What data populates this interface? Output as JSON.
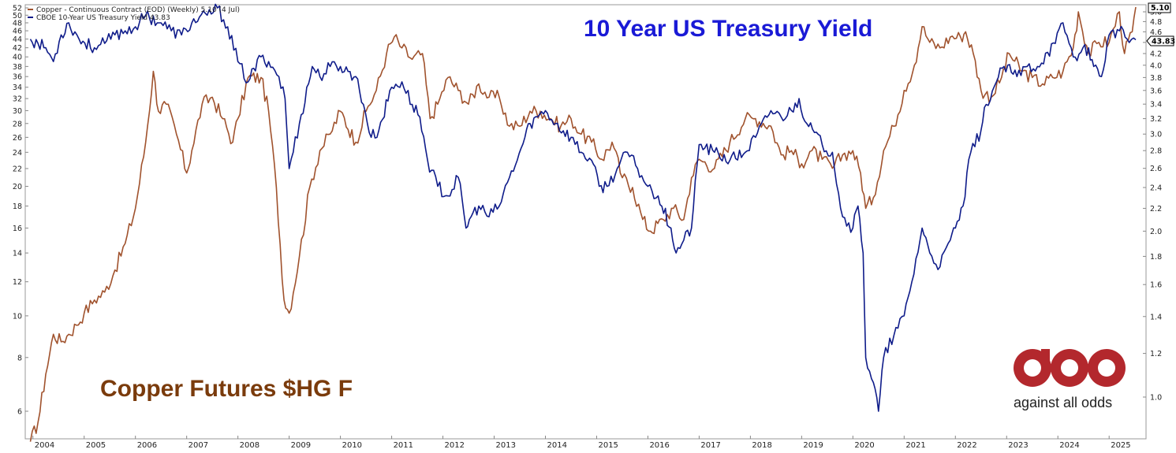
{
  "chart_data": {
    "type": "line",
    "title": "10 Year US Treasury Yield",
    "annotation": "Copper Futures $HG F",
    "legend": [
      {
        "label": "Copper - Continuous Contract (EOD) (Weekly) 5.10 (4 Jul)",
        "color": "#a0522d"
      },
      {
        "label": "CBOE 10-Year US Treasury Yield 43.83",
        "color": "#0f1c8a"
      }
    ],
    "x_ticks": [
      "2004",
      "2005",
      "2006",
      "2007",
      "2008",
      "2009",
      "2010",
      "2011",
      "2012",
      "2013",
      "2014",
      "2015",
      "2016",
      "2017",
      "2018",
      "2019",
      "2020",
      "2021",
      "2022",
      "2023",
      "2024",
      "2025"
    ],
    "left_axis": {
      "scale": "log",
      "ticks": [
        6,
        8,
        10,
        12,
        14,
        16,
        18,
        20,
        22,
        24,
        26,
        28,
        30,
        32,
        34,
        36,
        38,
        40,
        42,
        44,
        46,
        48,
        50,
        52
      ]
    },
    "right_axis": {
      "scale": "log",
      "ticks": [
        "1.0",
        "1.2",
        "1.4",
        "1.6",
        "1.8",
        "2.0",
        "2.2",
        "2.4",
        "2.6",
        "2.8",
        "3.0",
        "3.2",
        "3.4",
        "3.6",
        "3.8",
        "4.0",
        "4.2",
        "4.4",
        "4.6",
        "4.8",
        "5.0"
      ]
    },
    "series": [
      {
        "name": "Copper - Continuous Contract (EOD) (Weekly) 5.10 (4 Jul)",
        "axis": "right",
        "color": "#a0522d",
        "x": [
          2003.95,
          2004.1,
          2004.25,
          2004.4,
          2004.55,
          2004.7,
          2004.85,
          2005.0,
          2005.2,
          2005.4,
          2005.6,
          2005.8,
          2006.0,
          2006.2,
          2006.35,
          2006.45,
          2006.6,
          2006.8,
          2007.0,
          2007.1,
          2007.3,
          2007.5,
          2007.7,
          2007.9,
          2008.0,
          2008.2,
          2008.45,
          2008.6,
          2008.75,
          2008.9,
          2009.0,
          2009.2,
          2009.4,
          2009.6,
          2009.8,
          2010.0,
          2010.3,
          2010.5,
          2010.7,
          2010.9,
          2011.05,
          2011.2,
          2011.4,
          2011.6,
          2011.75,
          2011.9,
          2012.1,
          2012.3,
          2012.5,
          2012.7,
          2012.9,
          2013.1,
          2013.3,
          2013.5,
          2013.7,
          2013.9,
          2014.1,
          2014.3,
          2014.5,
          2014.7,
          2014.9,
          2015.1,
          2015.3,
          2015.5,
          2015.7,
          2015.9,
          2016.05,
          2016.3,
          2016.5,
          2016.7,
          2016.85,
          2017.0,
          2017.3,
          2017.6,
          2017.9,
          2018.1,
          2018.4,
          2018.6,
          2018.8,
          2019.0,
          2019.2,
          2019.4,
          2019.6,
          2019.8,
          2020.0,
          2020.15,
          2020.25,
          2020.4,
          2020.6,
          2020.8,
          2021.0,
          2021.2,
          2021.35,
          2021.5,
          2021.7,
          2021.9,
          2022.1,
          2022.2,
          2022.35,
          2022.5,
          2022.7,
          2022.9,
          2023.05,
          2023.3,
          2023.5,
          2023.7,
          2023.9,
          2024.1,
          2024.3,
          2024.4,
          2024.6,
          2024.8,
          2025.0,
          2025.2,
          2025.3,
          2025.45,
          2025.52
        ],
        "values": [
          0.83,
          0.9,
          1.1,
          1.3,
          1.26,
          1.3,
          1.35,
          1.42,
          1.5,
          1.55,
          1.7,
          1.9,
          2.2,
          2.9,
          3.9,
          3.3,
          3.4,
          3.0,
          2.55,
          2.8,
          3.4,
          3.5,
          3.2,
          2.9,
          3.2,
          3.8,
          3.8,
          3.3,
          2.4,
          1.5,
          1.42,
          1.8,
          2.4,
          2.8,
          3.0,
          3.3,
          2.9,
          3.3,
          3.6,
          4.2,
          4.5,
          4.3,
          4.1,
          4.2,
          3.2,
          3.4,
          3.8,
          3.6,
          3.4,
          3.7,
          3.5,
          3.5,
          3.1,
          3.1,
          3.3,
          3.3,
          3.2,
          3.1,
          3.2,
          3.0,
          2.9,
          2.7,
          2.9,
          2.5,
          2.4,
          2.1,
          2.0,
          2.1,
          2.2,
          2.1,
          2.5,
          2.7,
          2.6,
          2.9,
          3.2,
          3.2,
          3.1,
          2.75,
          2.8,
          2.65,
          2.8,
          2.7,
          2.6,
          2.75,
          2.8,
          2.55,
          2.2,
          2.3,
          2.8,
          3.1,
          3.6,
          4.0,
          4.7,
          4.4,
          4.3,
          4.5,
          4.5,
          4.6,
          4.2,
          3.6,
          3.5,
          3.8,
          4.2,
          3.9,
          3.8,
          3.7,
          3.8,
          3.9,
          4.3,
          5.0,
          4.2,
          4.4,
          4.4,
          5.0,
          4.2,
          4.6,
          5.1
        ]
      },
      {
        "name": "CBOE 10-Year US Treasury Yield 43.83",
        "axis": "left",
        "color": "#0f1c8a",
        "x": [
          2003.95,
          2004.1,
          2004.25,
          2004.4,
          2004.55,
          2004.7,
          2004.9,
          2005.2,
          2005.4,
          2005.6,
          2005.8,
          2006.0,
          2006.2,
          2006.5,
          2006.7,
          2006.9,
          2007.1,
          2007.4,
          2007.6,
          2007.8,
          2008.0,
          2008.2,
          2008.45,
          2008.6,
          2008.8,
          2008.92,
          2009.0,
          2009.2,
          2009.45,
          2009.6,
          2009.8,
          2010.0,
          2010.3,
          2010.45,
          2010.6,
          2010.75,
          2011.0,
          2011.2,
          2011.4,
          2011.55,
          2011.7,
          2011.9,
          2012.1,
          2012.3,
          2012.45,
          2012.55,
          2012.7,
          2012.9,
          2013.1,
          2013.3,
          2013.45,
          2013.6,
          2013.7,
          2013.85,
          2014.0,
          2014.2,
          2014.5,
          2014.7,
          2014.9,
          2015.05,
          2015.2,
          2015.4,
          2015.6,
          2015.8,
          2016.0,
          2016.2,
          2016.45,
          2016.55,
          2016.7,
          2016.85,
          2017.0,
          2017.3,
          2017.6,
          2017.9,
          2018.1,
          2018.4,
          2018.6,
          2018.8,
          2018.95,
          2019.1,
          2019.4,
          2019.6,
          2019.8,
          2020.0,
          2020.1,
          2020.2,
          2020.25,
          2020.4,
          2020.5,
          2020.6,
          2020.8,
          2021.0,
          2021.15,
          2021.35,
          2021.5,
          2021.7,
          2021.9,
          2022.0,
          2022.15,
          2022.3,
          2022.5,
          2022.6,
          2022.8,
          2022.95,
          2023.2,
          2023.4,
          2023.6,
          2023.8,
          2023.95,
          2024.1,
          2024.3,
          2024.45,
          2024.6,
          2024.7,
          2024.85,
          2025.0,
          2025.2,
          2025.35,
          2025.52
        ],
        "values": [
          44,
          43,
          42,
          39,
          45,
          48,
          44,
          42,
          43,
          45,
          46,
          47,
          50,
          48,
          46,
          45,
          48,
          50,
          52,
          47,
          39,
          35,
          40,
          39,
          36,
          32,
          22,
          28,
          38,
          36,
          38,
          38,
          36,
          31,
          26,
          27,
          34,
          35,
          31,
          29,
          23,
          20,
          19,
          21,
          16,
          17,
          18,
          17,
          18,
          21,
          23,
          26,
          28,
          29,
          30,
          28,
          26,
          24,
          23,
          20,
          20,
          22,
          24,
          22,
          20,
          19,
          16,
          14,
          15,
          16,
          25,
          24,
          23,
          24,
          26,
          30,
          29,
          30,
          32,
          28,
          25,
          24,
          17,
          16,
          18,
          14,
          8,
          7,
          6,
          8,
          9,
          10,
          12,
          16,
          14,
          13,
          15,
          16,
          18,
          24,
          27,
          31,
          35,
          38,
          36,
          38,
          38,
          41,
          43,
          48,
          40,
          41,
          42,
          38,
          36,
          45,
          46,
          44,
          43.83
        ]
      }
    ]
  },
  "logo": {
    "text": "against all odds",
    "color": "#b3282d"
  },
  "value_tags": {
    "copper": "5.10",
    "yield": "43.83"
  }
}
